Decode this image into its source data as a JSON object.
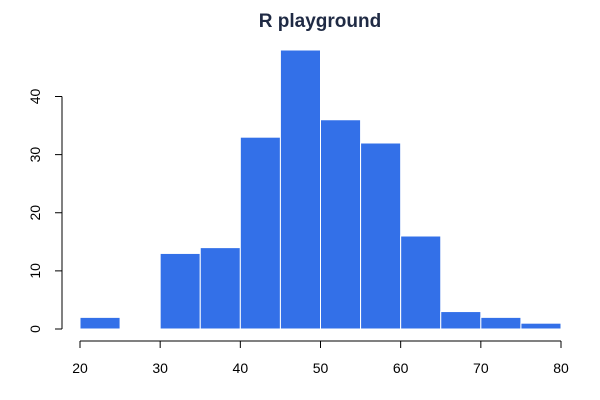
{
  "chart_data": {
    "type": "bar",
    "title": "R playground",
    "xlabel": "",
    "ylabel": "",
    "bar_color": "#3370e8",
    "bar_border_color": "#ffffff",
    "title_color": "#1f2a44",
    "bins": [
      {
        "x_start": 20,
        "x_end": 25,
        "value": 2
      },
      {
        "x_start": 30,
        "x_end": 35,
        "value": 13
      },
      {
        "x_start": 35,
        "x_end": 40,
        "value": 14
      },
      {
        "x_start": 40,
        "x_end": 45,
        "value": 33
      },
      {
        "x_start": 45,
        "x_end": 50,
        "value": 48
      },
      {
        "x_start": 50,
        "x_end": 55,
        "value": 36
      },
      {
        "x_start": 55,
        "x_end": 60,
        "value": 32
      },
      {
        "x_start": 60,
        "x_end": 65,
        "value": 16
      },
      {
        "x_start": 65,
        "x_end": 70,
        "value": 3
      },
      {
        "x_start": 70,
        "x_end": 75,
        "value": 2
      },
      {
        "x_start": 75,
        "x_end": 80,
        "value": 1
      }
    ],
    "xlim": [
      20,
      80
    ],
    "ylim": [
      0,
      48
    ],
    "x_ticks": [
      "20",
      "30",
      "40",
      "50",
      "60",
      "70",
      "80"
    ],
    "y_ticks": [
      "0",
      "10",
      "20",
      "30",
      "40"
    ],
    "grid": false,
    "legend": "none"
  }
}
